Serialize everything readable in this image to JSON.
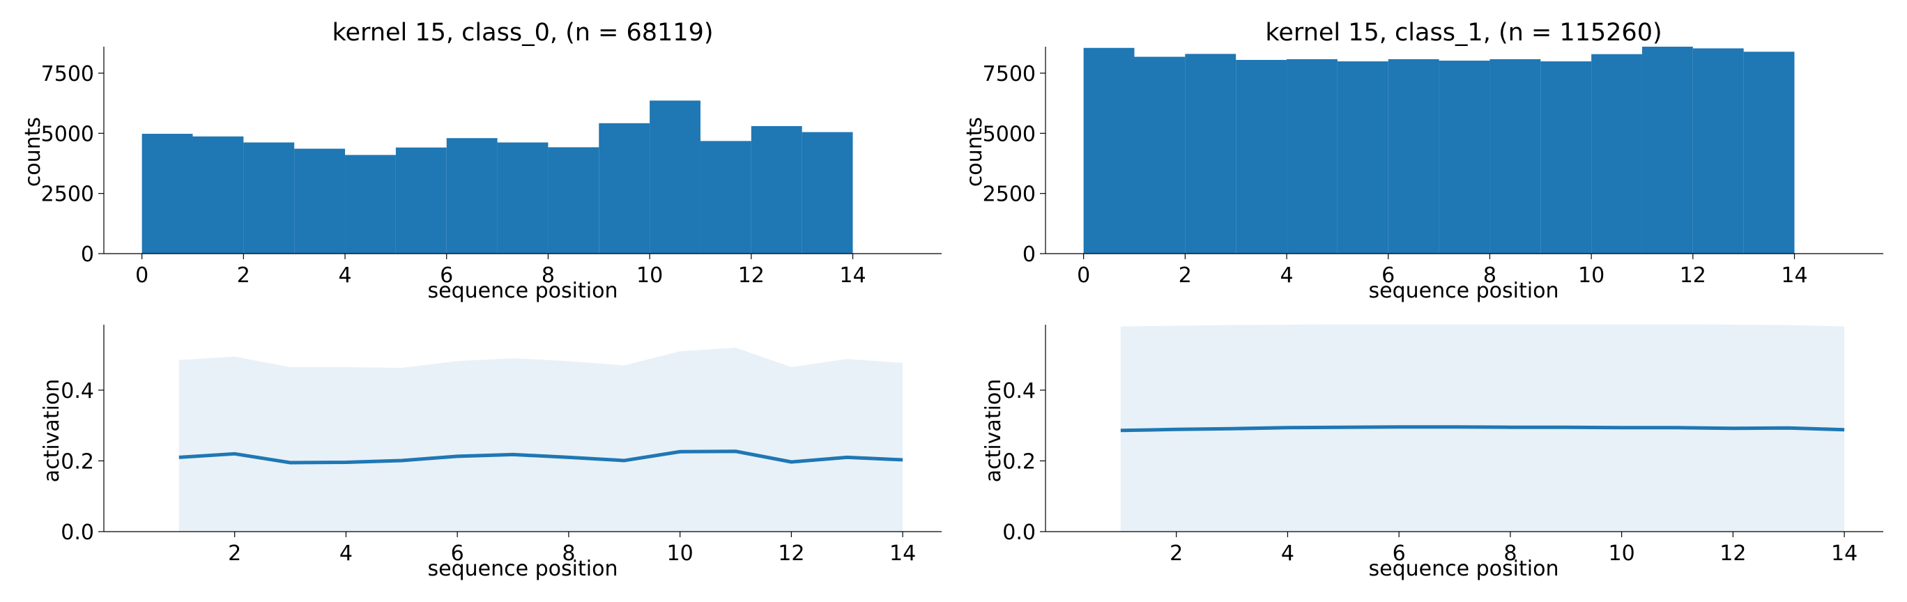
{
  "colors": {
    "bar": "#1f77b4",
    "line": "#1f77b4",
    "band": "#1f77b4"
  },
  "chart_data": [
    {
      "type": "bar",
      "title": "kernel 15, class_0, (n = 68119)",
      "xlabel": "sequence position",
      "ylabel": "counts",
      "bin_edges": [
        0,
        1,
        2,
        3,
        4,
        5,
        6,
        7,
        8,
        9,
        10,
        11,
        12,
        13,
        14
      ],
      "values": [
        4980,
        4870,
        4620,
        4360,
        4100,
        4410,
        4800,
        4620,
        4420,
        5420,
        6360,
        4680,
        5300,
        5050
      ],
      "xlim": [
        -0.75,
        15.75
      ],
      "ylim": [
        0,
        8600
      ],
      "xticks": [
        0,
        2,
        4,
        6,
        8,
        10,
        12,
        14
      ],
      "yticks": [
        0,
        2500,
        5000,
        7500
      ]
    },
    {
      "type": "bar",
      "title": "kernel 15, class_1, (n = 115260)",
      "xlabel": "sequence position",
      "ylabel": "counts",
      "bin_edges": [
        0,
        1,
        2,
        3,
        4,
        5,
        6,
        7,
        8,
        9,
        10,
        11,
        12,
        13,
        14
      ],
      "values": [
        8550,
        8180,
        8300,
        8050,
        8080,
        7990,
        8080,
        8020,
        8080,
        7990,
        8290,
        8600,
        8530,
        8390
      ],
      "xlim": [
        -0.75,
        15.75
      ],
      "ylim": [
        0,
        8600
      ],
      "xticks": [
        0,
        2,
        4,
        6,
        8,
        10,
        12,
        14
      ],
      "yticks": [
        0,
        2500,
        5000,
        7500
      ]
    },
    {
      "type": "area",
      "xlabel": "sequence position",
      "ylabel": "activation",
      "x": [
        1,
        2,
        3,
        4,
        5,
        6,
        7,
        8,
        9,
        10,
        11,
        12,
        13,
        14
      ],
      "mean": [
        0.21,
        0.22,
        0.195,
        0.196,
        0.201,
        0.213,
        0.218,
        0.21,
        0.201,
        0.226,
        0.227,
        0.197,
        0.21,
        0.203
      ],
      "band_low": [
        0,
        0,
        0,
        0,
        0,
        0,
        0,
        0,
        0,
        0,
        0,
        0,
        0,
        0
      ],
      "band_high": [
        0.485,
        0.495,
        0.465,
        0.465,
        0.463,
        0.482,
        0.49,
        0.482,
        0.47,
        0.51,
        0.52,
        0.465,
        0.488,
        0.477
      ],
      "xlim": [
        -0.35,
        14.7
      ],
      "ylim": [
        0,
        0.585
      ],
      "xticks": [
        2,
        4,
        6,
        8,
        10,
        12,
        14
      ],
      "yticks": [
        0.0,
        0.2,
        0.4
      ],
      "ytick_labels": [
        "0.0",
        "0.2",
        "0.4"
      ]
    },
    {
      "type": "area",
      "xlabel": "sequence position",
      "ylabel": "activation",
      "x": [
        1,
        2,
        3,
        4,
        5,
        6,
        7,
        8,
        9,
        10,
        11,
        12,
        13,
        14
      ],
      "mean": [
        0.286,
        0.289,
        0.291,
        0.294,
        0.295,
        0.296,
        0.296,
        0.295,
        0.295,
        0.294,
        0.294,
        0.292,
        0.293,
        0.288
      ],
      "band_low": [
        0,
        0,
        0,
        0,
        0,
        0,
        0,
        0,
        0,
        0,
        0,
        0,
        0,
        0
      ],
      "band_high": [
        0.58,
        0.582,
        0.584,
        0.585,
        0.586,
        0.586,
        0.586,
        0.586,
        0.586,
        0.586,
        0.586,
        0.585,
        0.584,
        0.58
      ],
      "xlim": [
        -0.35,
        14.7
      ],
      "ylim": [
        0,
        0.585
      ],
      "xticks": [
        2,
        4,
        6,
        8,
        10,
        12,
        14
      ],
      "yticks": [
        0.0,
        0.2,
        0.4
      ],
      "ytick_labels": [
        "0.0",
        "0.2",
        "0.4"
      ]
    }
  ]
}
